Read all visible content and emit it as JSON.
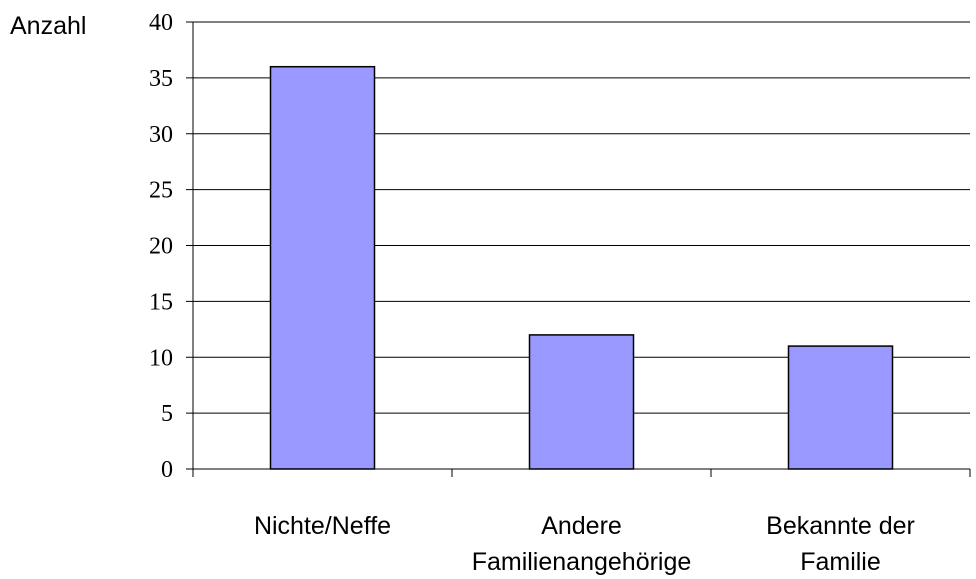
{
  "chart_data": {
    "type": "bar",
    "categories": [
      [
        "Nichte/Neffe"
      ],
      [
        "Andere",
        "Familienangehörige"
      ],
      [
        "Bekannte der",
        "Familie"
      ]
    ],
    "values": [
      36,
      12,
      11
    ],
    "ylabel": "Anzahl",
    "ylim": [
      0,
      40
    ],
    "yticks": [
      0,
      5,
      10,
      15,
      20,
      25,
      30,
      35,
      40
    ],
    "grid": true,
    "legend": "none",
    "bar_color": "#9999ff",
    "bar_edge_color": "#000000"
  }
}
